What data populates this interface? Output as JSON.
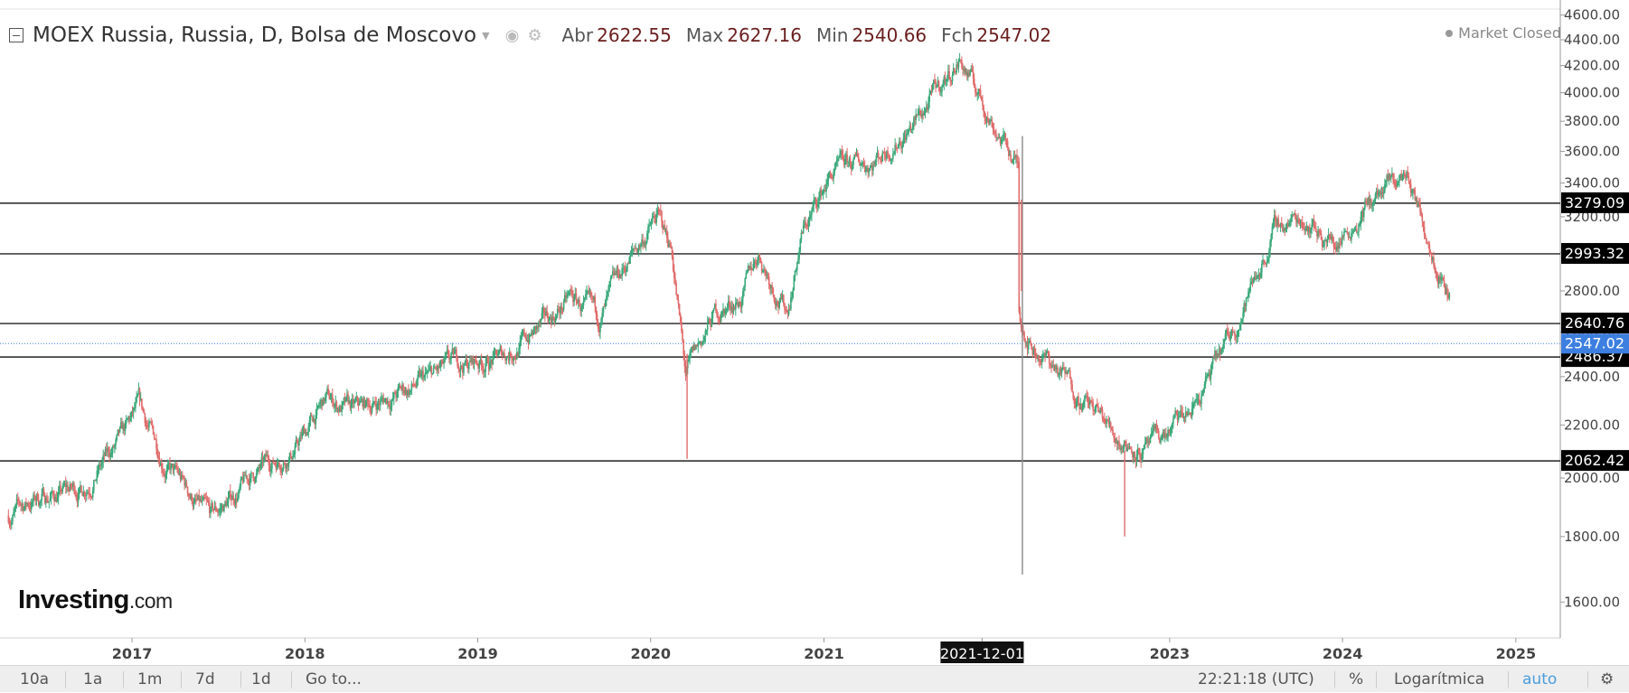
{
  "header": {
    "title": "MOEX Russia, Russia, D, Bolsa de Moscovo",
    "ohlc": [
      {
        "label": "Abr",
        "value": "2622.55"
      },
      {
        "label": "Max",
        "value": "2627.16"
      },
      {
        "label": "Min",
        "value": "2540.66"
      },
      {
        "label": "Fch",
        "value": "2547.02"
      }
    ],
    "market_status": "Market Closed"
  },
  "logo": {
    "brand": "Investing",
    "suffix": ".com"
  },
  "toolbar": {
    "ranges": [
      "10a",
      "1a",
      "1m",
      "7d",
      "1d"
    ],
    "goto": "Go to...",
    "time": "22:21:18 (UTC)",
    "percent": "%",
    "scale": "Logarítmica",
    "auto": "auto",
    "settings_icon": "gear-icon"
  },
  "colors": {
    "up": "#3aa87a",
    "down": "#e06b6b",
    "level_line": "#222222",
    "last_price": "#3d7fe0"
  },
  "chart_data": {
    "type": "line",
    "series_kind": "candlestick",
    "y_scale": "log",
    "ylim": [
      1500,
      4650
    ],
    "y_ticks": [
      "1600.00",
      "1800.00",
      "2000.00",
      "2200.00",
      "2400.00",
      "2600.00",
      "2800.00",
      "3000.00",
      "3200.00",
      "3400.00",
      "3600.00",
      "3800.00",
      "4000.00",
      "4200.00",
      "4400.00",
      "4600.00"
    ],
    "x_ticks": [
      "2017",
      "2018",
      "2019",
      "2020",
      "2021",
      "2021-12-01",
      "2023",
      "2024",
      "2025"
    ],
    "highlighted_x_tick": "2021-12-01",
    "grid": false,
    "horizontal_levels": [
      3279.09,
      2993.32,
      2640.76,
      2486.37,
      2062.42
    ],
    "last_price": 2547.02,
    "x": [
      "2016-04",
      "2016-06",
      "2016-09",
      "2016-12",
      "2017-01",
      "2017-03",
      "2017-06",
      "2017-09",
      "2017-12",
      "2018-02",
      "2018-04",
      "2018-06",
      "2018-09",
      "2018-11",
      "2019-02",
      "2019-05",
      "2019-07",
      "2019-09",
      "2019-11",
      "2020-01",
      "2020-02",
      "2020-03",
      "2020-05",
      "2020-07",
      "2020-08",
      "2020-10",
      "2020-11",
      "2021-01",
      "2021-04",
      "2021-07",
      "2021-09",
      "2021-10",
      "2021-12",
      "2022-02",
      "2022-02",
      "2022-03",
      "2022-06",
      "2022-09",
      "2022-11",
      "2023-02",
      "2023-05",
      "2023-08",
      "2023-10",
      "2023-12",
      "2024-02",
      "2024-05",
      "2024-06",
      "2024-08",
      "2024-08"
    ],
    "values": [
      1870,
      1930,
      1960,
      2150,
      2260,
      2050,
      1850,
      2010,
      2120,
      2300,
      2250,
      2300,
      2380,
      2450,
      2480,
      2620,
      2760,
      2650,
      2950,
      3200,
      3020,
      2400,
      2680,
      2780,
      3000,
      2700,
      3100,
      3450,
      3550,
      3800,
      4100,
      4250,
      3850,
      3500,
      2700,
      2550,
      2350,
      2150,
      2100,
      2250,
      2600,
      3150,
      3200,
      3050,
      3250,
      3450,
      3200,
      2800,
      2547
    ]
  }
}
